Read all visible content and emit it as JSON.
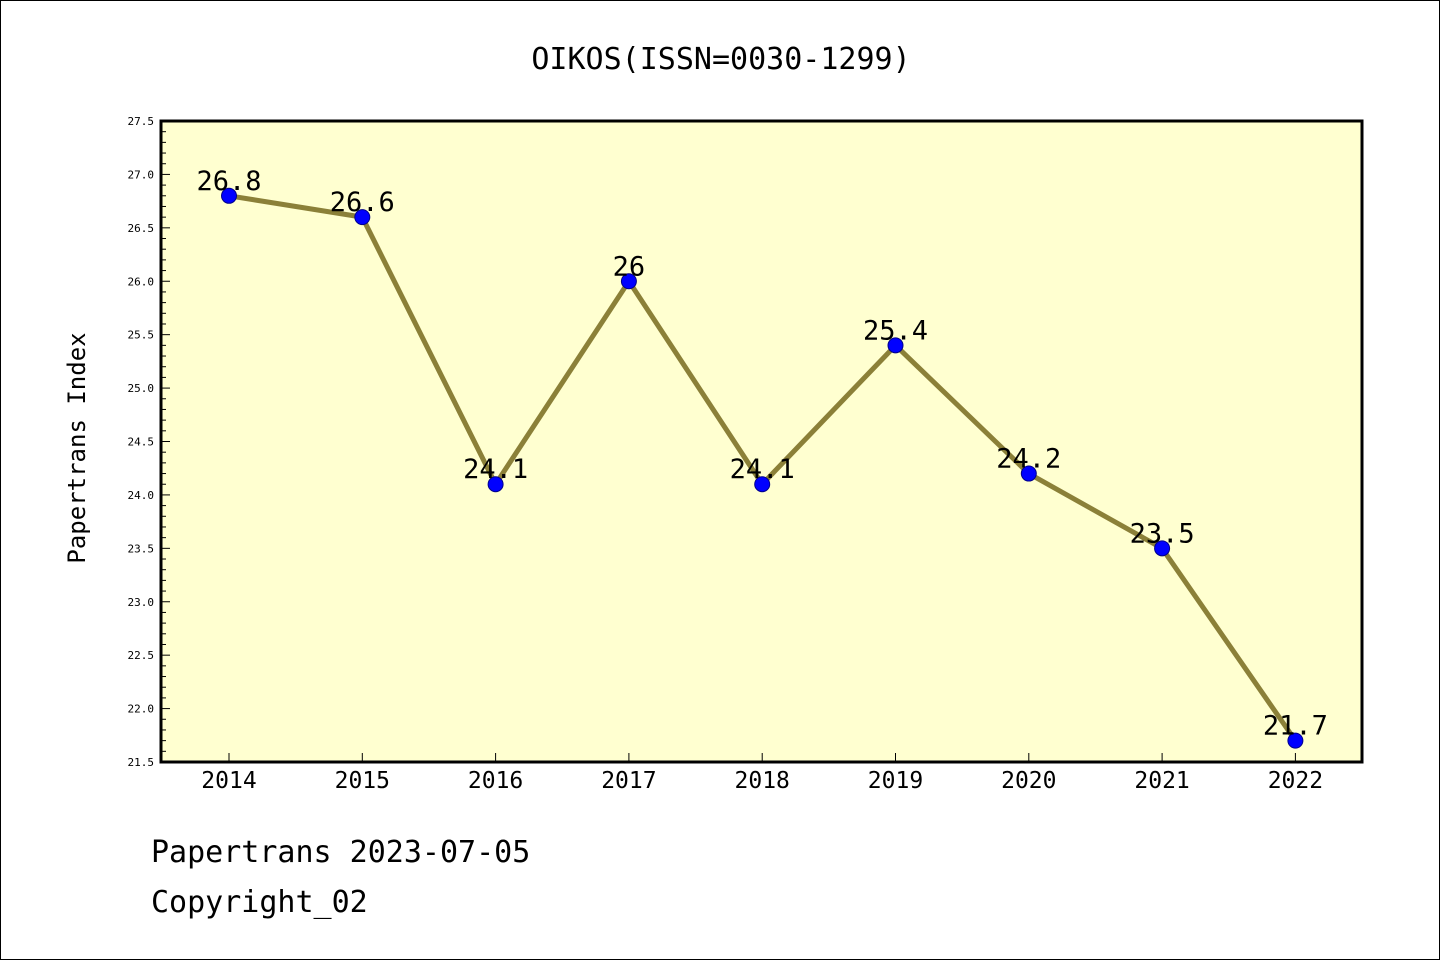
{
  "footer": {
    "line1": "Papertrans 2023-07-05",
    "line2": "Copyright_02"
  },
  "chart_data": {
    "type": "line",
    "title": "OIKOS(ISSN=0030-1299)",
    "xlabel": "",
    "ylabel": "Papertrans Index",
    "categories": [
      "2014",
      "2015",
      "2016",
      "2017",
      "2018",
      "2019",
      "2020",
      "2021",
      "2022"
    ],
    "values": [
      26.8,
      26.6,
      24.1,
      26.0,
      24.1,
      25.4,
      24.2,
      23.5,
      21.7
    ],
    "data_labels": [
      "26.8",
      "26.6",
      "24.1",
      "26",
      "24.1",
      "25.4",
      "24.2",
      "23.5",
      "21.7"
    ],
    "ylim": [
      21.5,
      27.5
    ],
    "yticks": [
      "21.5",
      "22.0",
      "22.5",
      "23.0",
      "23.5",
      "24.0",
      "24.5",
      "25.0",
      "25.5",
      "26.0",
      "26.5",
      "27.0",
      "27.5"
    ],
    "grid": false,
    "legend": "none",
    "colors": {
      "plot_background": "#ffffd0",
      "line": "#8b8038",
      "marker": "#0000ff",
      "marker_edge": "#00008b",
      "axis": "#000000"
    }
  }
}
